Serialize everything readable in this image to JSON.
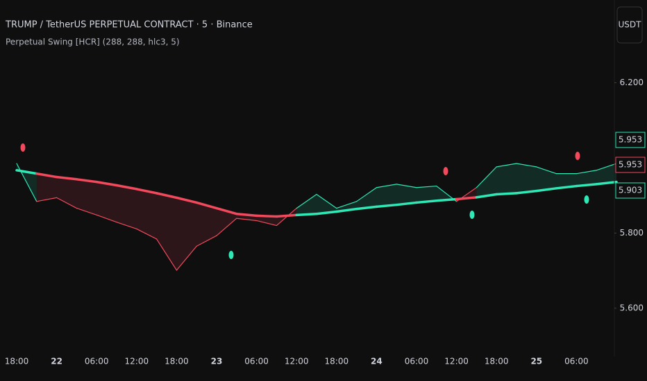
{
  "chart_data": {
    "type": "line",
    "title": "TRUMP / TetherUS PERPETUAL CONTRACT · 5 · Binance",
    "subtitle": "Perpetual Swing [HCR] (288, 288, hlc3, 5)",
    "currency_button": "USDT",
    "categories": [
      "18:00",
      null,
      "22",
      null,
      "06:00",
      null,
      "12:00",
      null,
      "18:00",
      null,
      "23",
      null,
      "06:00",
      null,
      "12:00",
      null,
      "18:00",
      null,
      "24",
      null,
      "06:00",
      null,
      "12:00",
      null,
      "18:00",
      null,
      "25",
      null,
      "06:00",
      null,
      null
    ],
    "series": [
      {
        "name": "Price",
        "values": [
          5.985,
          5.884,
          5.894,
          5.866,
          5.848,
          5.829,
          5.811,
          5.784,
          5.701,
          5.765,
          5.793,
          5.839,
          5.833,
          5.82,
          5.866,
          5.903,
          5.866,
          5.884,
          5.921,
          5.93,
          5.921,
          5.925,
          5.884,
          5.921,
          5.976,
          5.985,
          5.976,
          5.958,
          5.958,
          5.967,
          5.985
        ]
      },
      {
        "name": "Perpetual Swing",
        "values": [
          5.967,
          5.958,
          5.949,
          5.943,
          5.936,
          5.927,
          5.917,
          5.906,
          5.894,
          5.881,
          5.866,
          5.851,
          5.846,
          5.844,
          5.848,
          5.851,
          5.857,
          5.864,
          5.87,
          5.875,
          5.881,
          5.886,
          5.89,
          5.895,
          5.903,
          5.906,
          5.912,
          5.919,
          5.925,
          5.93,
          5.936
        ]
      }
    ],
    "bull_color": "#2ee8b6",
    "bear_color": "#f2495c",
    "price_labels": [
      {
        "value": 5.953,
        "label": "5.953",
        "color": "#2ee8b6"
      },
      {
        "value": 5.953,
        "label": "5.953",
        "color": "#f2495c"
      },
      {
        "value": 5.903,
        "label": "5.903",
        "color": "#2ee8b6"
      }
    ],
    "ylim": [
      5.48,
      6.42
    ],
    "yticks": [
      {
        "value": 5.6,
        "label": "5.600"
      },
      {
        "value": 5.8,
        "label": "5.800"
      },
      {
        "value": 6.2,
        "label": "6.200"
      }
    ],
    "grid": false
  }
}
